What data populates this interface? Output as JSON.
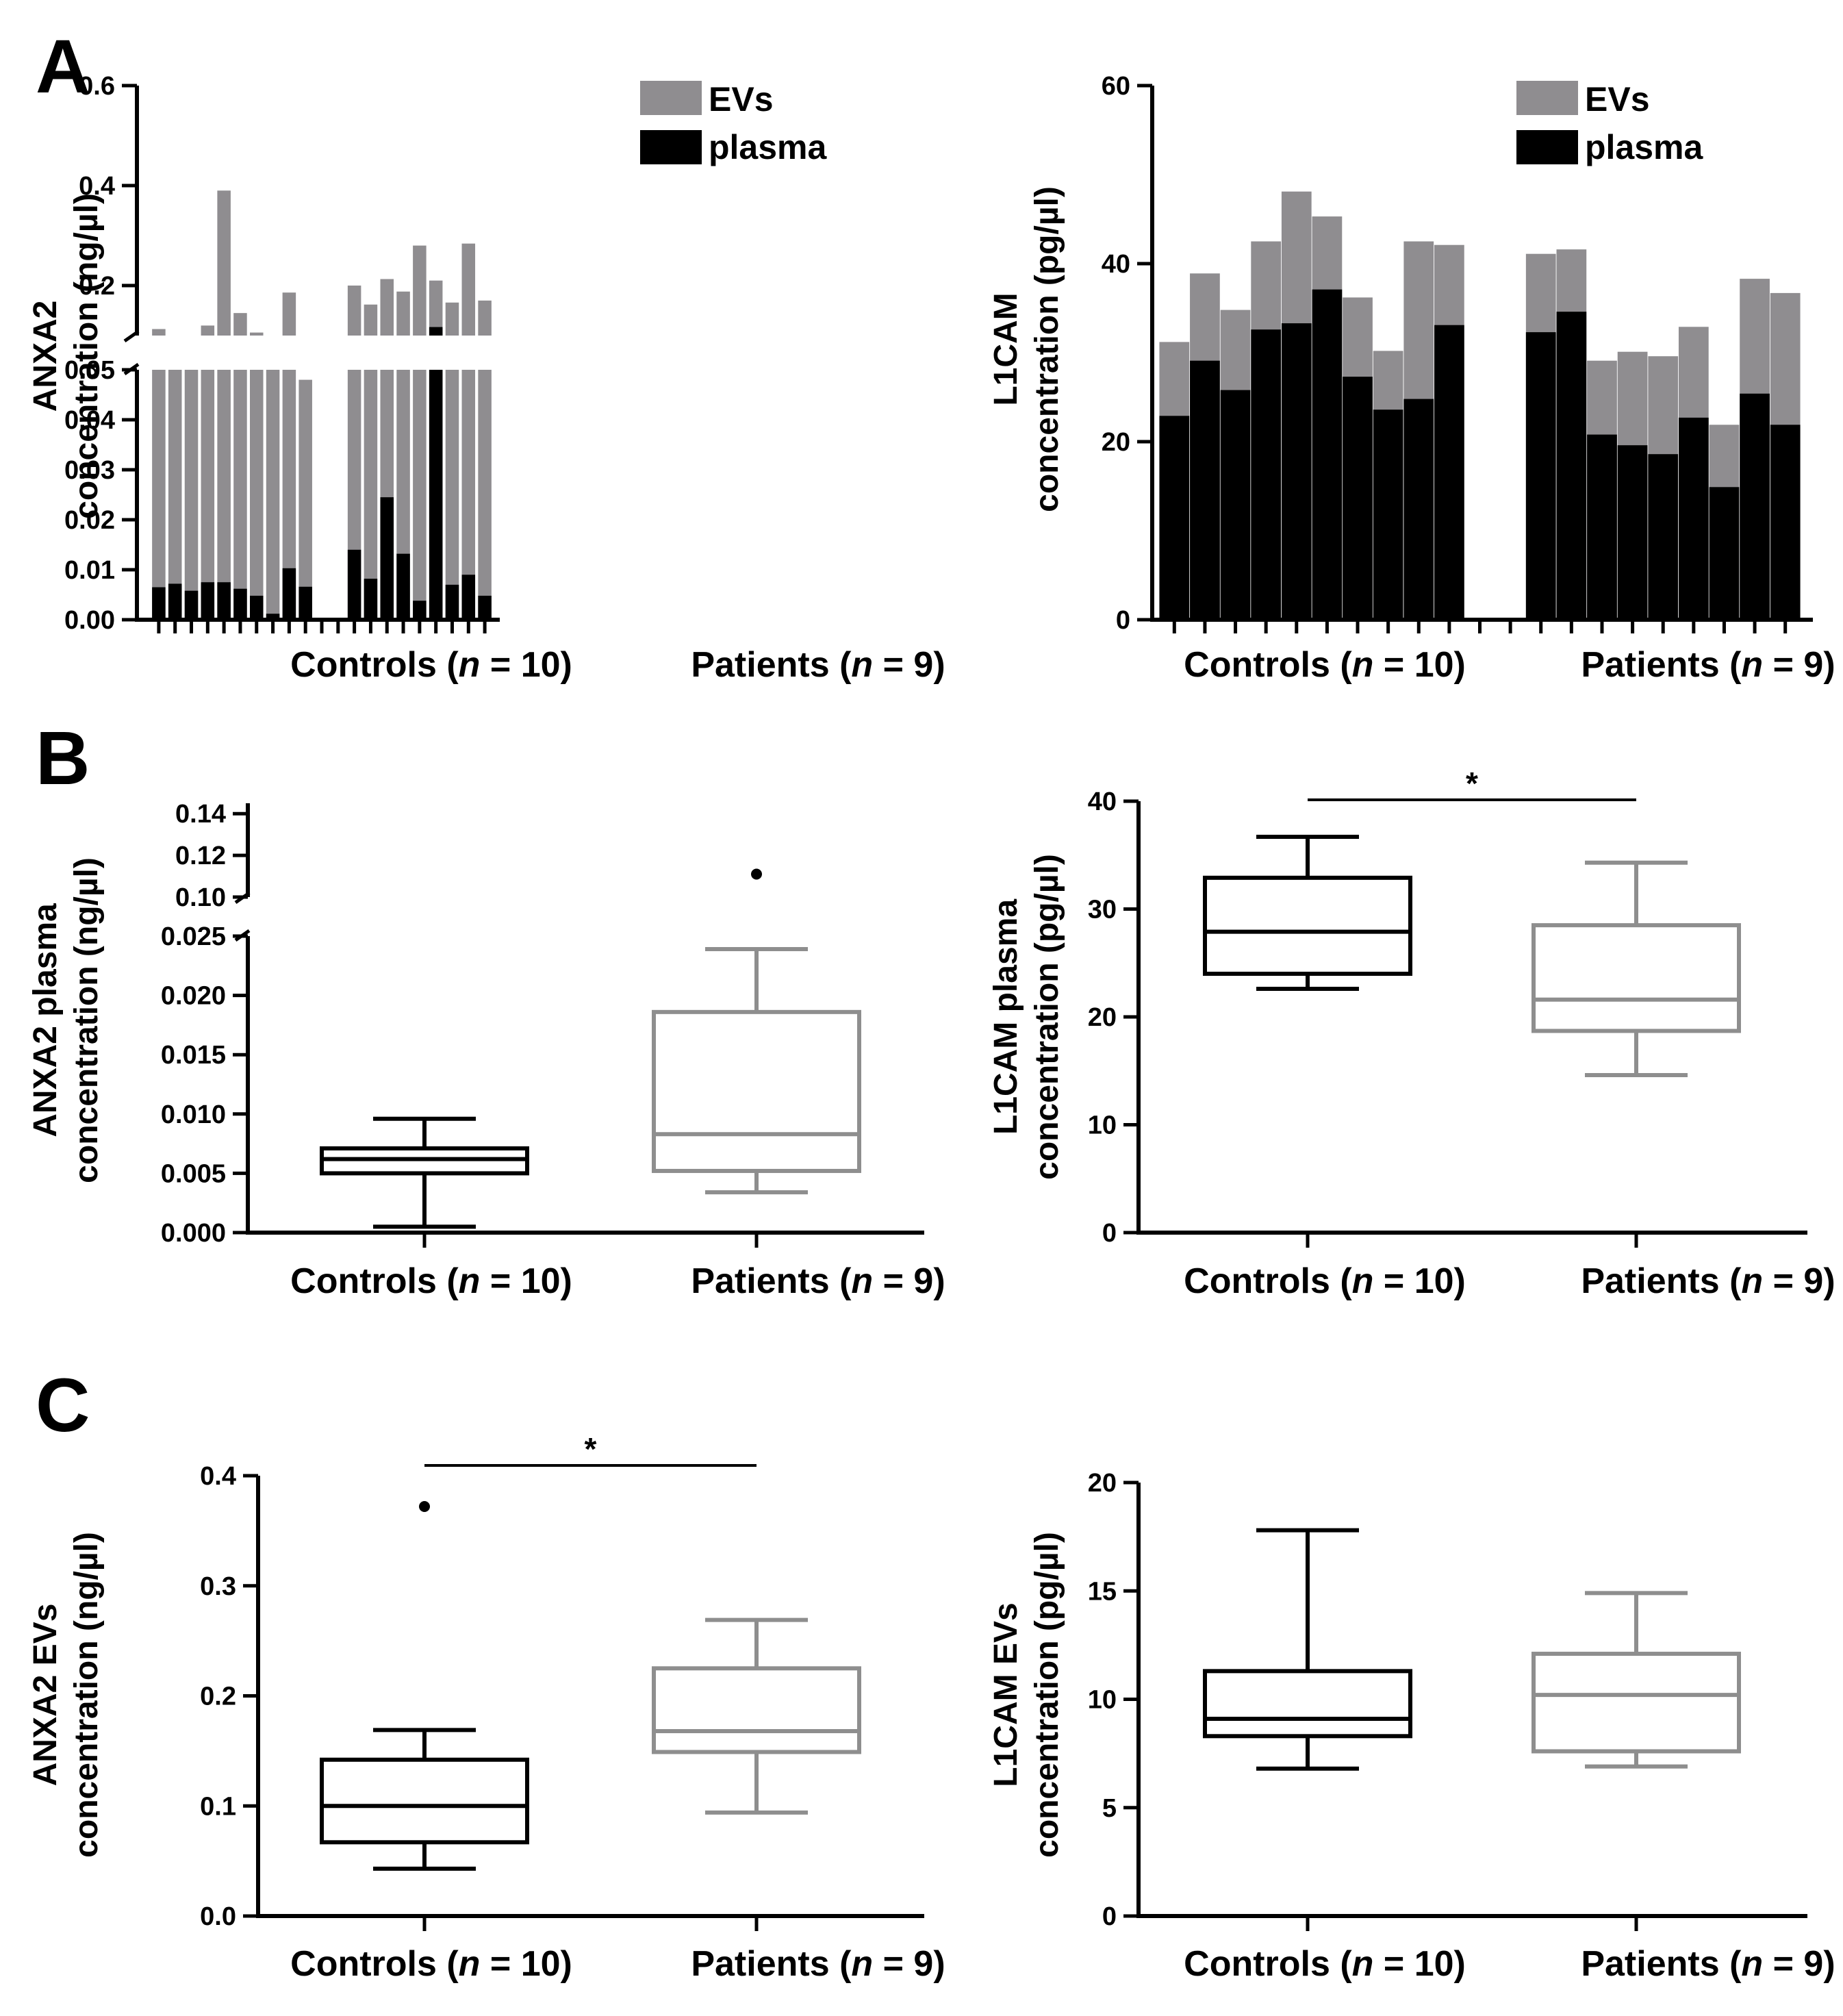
{
  "figure": {
    "panel_labels": [
      "A",
      "B",
      "C"
    ],
    "group_labels": {
      "controls": [
        "Controls (",
        "n",
        " = 10)"
      ],
      "patients": [
        "Patients (",
        "n",
        " = 9)"
      ]
    },
    "colors": {
      "evs": "#8f8d90",
      "plasma": "#000000",
      "controls_box": "#000000",
      "patients_box": "#8e8e8e"
    }
  },
  "chart_data": [
    {
      "id": "A_anxa2",
      "type": "bar",
      "panel": "A",
      "ylabel_lines": [
        "ANXA2",
        "concentration (ng/µl)"
      ],
      "broken_axis": true,
      "ticks_lower": [
        "0.00",
        "0.01",
        "0.02",
        "0.03",
        "0.04",
        "0.05"
      ],
      "ticks_upper": [
        "0.2",
        "0.4",
        "0.6"
      ],
      "lower_range": [
        0,
        0.05
      ],
      "upper_range": [
        0.1,
        0.6
      ],
      "legend": [
        "EVs",
        "plasma"
      ],
      "series": [
        {
          "name": "EVs",
          "group": "Controls",
          "values": [
            0.113,
            0.073,
            0.094,
            0.12,
            0.39,
            0.145,
            0.106,
            0.082,
            0.186,
            0.048
          ]
        },
        {
          "name": "plasma",
          "group": "Controls",
          "values": [
            0.0065,
            0.0072,
            0.0058,
            0.0075,
            0.0075,
            0.0062,
            0.0048,
            0.0012,
            0.0103,
            0.0066
          ]
        },
        {
          "name": "EVs",
          "group": "Patients",
          "values": [
            0.2,
            0.162,
            0.213,
            0.188,
            0.28,
            0.21,
            0.166,
            0.284,
            0.17
          ]
        },
        {
          "name": "plasma",
          "group": "Patients",
          "values": [
            0.014,
            0.0082,
            0.0245,
            0.0132,
            0.0038,
            0.117,
            0.007,
            0.009,
            0.0048
          ]
        }
      ]
    },
    {
      "id": "A_l1cam",
      "type": "bar",
      "panel": "A",
      "ylabel_lines": [
        "L1CAM",
        "concentration (pg/µl)"
      ],
      "ticks": [
        "0",
        "20",
        "40",
        "60"
      ],
      "ylim": [
        0,
        60
      ],
      "legend": [
        "EVs",
        "plasma"
      ],
      "series": [
        {
          "name": "EVs",
          "group": "Controls",
          "values": [
            31.2,
            38.9,
            34.8,
            42.5,
            48.1,
            45.3,
            36.2,
            30.2,
            42.5,
            42.1
          ]
        },
        {
          "name": "plasma",
          "group": "Controls",
          "values": [
            22.9,
            29.1,
            25.8,
            32.6,
            33.3,
            37.1,
            27.3,
            23.6,
            24.8,
            33.1
          ]
        },
        {
          "name": "EVs",
          "group": "Patients",
          "values": [
            41.1,
            41.6,
            29.1,
            30.1,
            29.6,
            32.9,
            21.9,
            38.3,
            36.7
          ]
        },
        {
          "name": "plasma",
          "group": "Patients",
          "values": [
            32.3,
            34.6,
            20.8,
            19.6,
            18.6,
            22.7,
            14.9,
            25.4,
            21.9
          ]
        }
      ]
    },
    {
      "id": "B_anxa2",
      "type": "box",
      "panel": "B",
      "ylabel_lines": [
        "ANXA2 plasma",
        "concentration (ng/µl)"
      ],
      "broken_axis": true,
      "ticks_lower": [
        "0.000",
        "0.005",
        "0.010",
        "0.015",
        "0.020",
        "0.025"
      ],
      "ticks_upper": [
        "0.10",
        "0.12",
        "0.14"
      ],
      "lower_range": [
        0,
        0.025
      ],
      "upper_range": [
        0.1,
        0.145
      ],
      "boxes": [
        {
          "group": "Controls",
          "min": 0.0005,
          "q1": 0.005,
          "median": 0.0062,
          "q3": 0.0071,
          "max": 0.0096
        },
        {
          "group": "Patients",
          "min": 0.0034,
          "q1": 0.0052,
          "median": 0.0083,
          "q3": 0.0186,
          "max": 0.0239,
          "outliers": [
            0.111
          ]
        }
      ]
    },
    {
      "id": "B_l1cam",
      "type": "box",
      "panel": "B",
      "ylabel_lines": [
        "L1CAM plasma",
        "concentration (pg/µl)"
      ],
      "ticks": [
        "0",
        "10",
        "20",
        "30",
        "40"
      ],
      "ylim": [
        0,
        40
      ],
      "significance": "*",
      "boxes": [
        {
          "group": "Controls",
          "min": 22.6,
          "q1": 24.0,
          "median": 27.9,
          "q3": 32.9,
          "max": 36.7
        },
        {
          "group": "Patients",
          "min": 14.6,
          "q1": 18.7,
          "median": 21.6,
          "q3": 28.5,
          "max": 34.3
        }
      ]
    },
    {
      "id": "C_anxa2",
      "type": "box",
      "panel": "C",
      "ylabel_lines": [
        "ANXA2 EVs",
        "concentration (ng/µl)"
      ],
      "ticks": [
        "0.0",
        "0.1",
        "0.2",
        "0.3",
        "0.4"
      ],
      "ylim": [
        0,
        0.4
      ],
      "significance": "*",
      "boxes": [
        {
          "group": "Controls",
          "min": 0.043,
          "q1": 0.067,
          "median": 0.1,
          "q3": 0.142,
          "max": 0.169,
          "outliers": [
            0.372
          ]
        },
        {
          "group": "Patients",
          "min": 0.094,
          "q1": 0.149,
          "median": 0.168,
          "q3": 0.225,
          "max": 0.269
        }
      ]
    },
    {
      "id": "C_l1cam",
      "type": "box",
      "panel": "C",
      "ylabel_lines": [
        "L1CAM EVs",
        "concentration (pg/µl)"
      ],
      "ticks": [
        "0",
        "5",
        "10",
        "15",
        "20"
      ],
      "ylim": [
        0,
        20
      ],
      "boxes": [
        {
          "group": "Controls",
          "min": 6.8,
          "q1": 8.3,
          "median": 9.1,
          "q3": 11.3,
          "max": 17.8
        },
        {
          "group": "Patients",
          "min": 6.9,
          "q1": 7.6,
          "median": 10.2,
          "q3": 12.1,
          "max": 14.9
        }
      ]
    }
  ]
}
